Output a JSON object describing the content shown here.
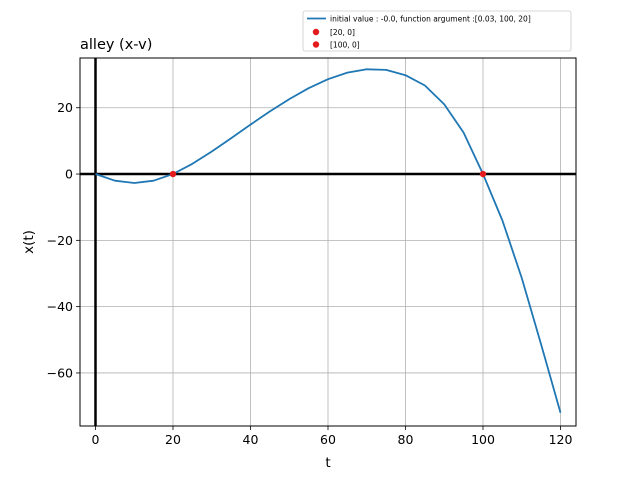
{
  "chart_data": {
    "type": "line",
    "title": "alley (x-v)",
    "xlabel": "t",
    "ylabel": "x(t)",
    "xlim": [
      -4,
      124
    ],
    "ylim": [
      -76,
      35
    ],
    "xticks": [
      0,
      20,
      40,
      60,
      80,
      100,
      120
    ],
    "yticks": [
      -60,
      -40,
      -20,
      0,
      20
    ],
    "xtick_labels": [
      "0",
      "20",
      "40",
      "60",
      "80",
      "100",
      "120"
    ],
    "ytick_labels": [
      "−60",
      "−40",
      "−20",
      "0",
      "20"
    ],
    "grid": true,
    "legend_position": "top-right, above plot",
    "series": [
      {
        "name": "initial value :        -0.0, function argument :[0.03, 100, 20]",
        "color": "#1f77b4",
        "x": [
          0,
          5,
          10,
          15,
          20,
          25,
          30,
          35,
          40,
          45,
          50,
          55,
          60,
          65,
          70,
          75,
          80,
          85,
          90,
          95,
          100,
          105,
          110,
          115,
          120
        ],
        "y": [
          0,
          -2.0,
          -2.7,
          -2.0,
          0,
          3.1,
          6.8,
          10.8,
          14.9,
          18.9,
          22.6,
          25.9,
          28.6,
          30.6,
          31.6,
          31.4,
          29.8,
          26.7,
          21.0,
          12.5,
          0,
          -14.0,
          -31.4,
          -51.4,
          -72.0
        ]
      }
    ],
    "points": [
      {
        "name": "[20, 0]",
        "x": 20,
        "y": 0,
        "color": "#e41a1c"
      },
      {
        "name": "[100, 0]",
        "x": 100,
        "y": 0,
        "color": "#e41a1c"
      }
    ],
    "reference_lines": {
      "x_zero": true,
      "y_zero": true,
      "color": "#000000"
    }
  }
}
